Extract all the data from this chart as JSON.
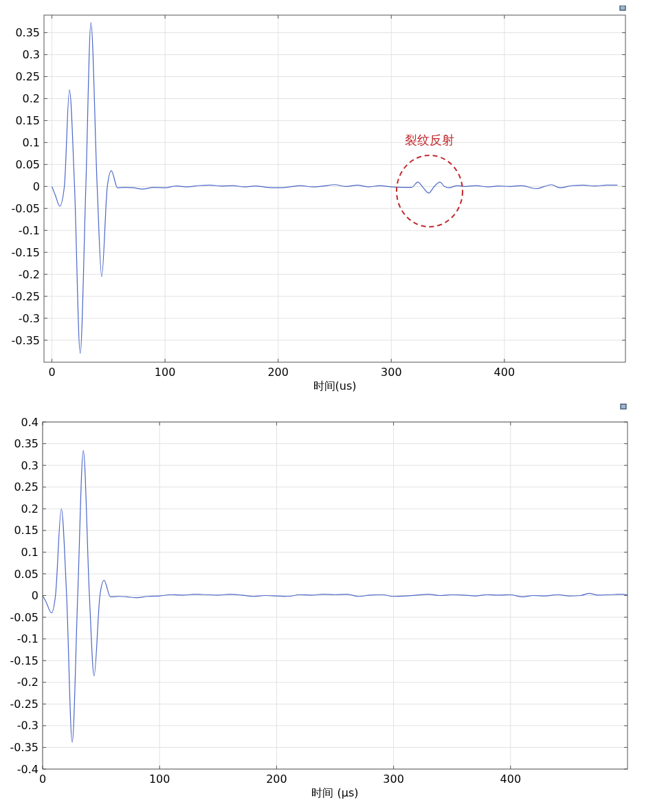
{
  "chart_data": [
    {
      "type": "line",
      "xlabel": "时间(us)",
      "xlim": [
        -7,
        507
      ],
      "ylim": [
        -0.4,
        0.39
      ],
      "xticks": [
        0,
        100,
        200,
        300,
        400
      ],
      "yticks": [
        -0.35,
        -0.3,
        -0.25,
        -0.2,
        -0.15,
        -0.1,
        -0.05,
        0,
        0.05,
        0.1,
        0.15,
        0.2,
        0.25,
        0.3,
        0.35
      ],
      "grid": true,
      "annotations": [
        "裂纹反射"
      ],
      "series": [
        {
          "color": "#4a66c8",
          "x": [
            0,
            3,
            7,
            11,
            15.5,
            20,
            25,
            30,
            34.5,
            40,
            44,
            49,
            52.5,
            58,
            65,
            72,
            80,
            90,
            100,
            110,
            120,
            130,
            140,
            150,
            160,
            170,
            180,
            190,
            200,
            210,
            220,
            230,
            240,
            250,
            260,
            270,
            280,
            290,
            300,
            310,
            318,
            323.5,
            328,
            333,
            338,
            343,
            347,
            351,
            358,
            365,
            375,
            385,
            395,
            405,
            415,
            428,
            441.5,
            449,
            460,
            470,
            480,
            490,
            500
          ],
          "values": [
            0,
            -0.02,
            -0.045,
            0,
            0.22,
            0,
            -0.38,
            0,
            0.373,
            0,
            -0.205,
            0,
            0.036,
            -0.003,
            -0.002,
            -0.003,
            -0.006,
            -0.002,
            -0.003,
            0.001,
            -0.001,
            0.002,
            0.003,
            0.001,
            0.002,
            -0.001,
            0.001,
            -0.002,
            -0.003,
            -0.001,
            0.002,
            -0.001,
            0.001,
            0.004,
            0,
            0.003,
            -0.001,
            0.002,
            -0.001,
            -0.002,
            -0.002,
            0.01,
            -0.002,
            -0.015,
            0,
            0.01,
            0,
            -0.003,
            0.002,
            0,
            0.002,
            -0.001,
            0.001,
            0,
            0.002,
            -0.005,
            0.004,
            -0.003,
            0.002,
            0.003,
            0.001,
            0.003,
            0.003
          ]
        }
      ]
    },
    {
      "type": "line",
      "xlabel": "时间 (μs)",
      "xlim": [
        0,
        500
      ],
      "ylim": [
        -0.4,
        0.4
      ],
      "xticks": [
        0,
        100,
        200,
        300,
        400
      ],
      "yticks": [
        -0.4,
        -0.35,
        -0.3,
        -0.25,
        -0.2,
        -0.15,
        -0.1,
        -0.05,
        0,
        0.05,
        0.1,
        0.15,
        0.2,
        0.25,
        0.3,
        0.35,
        0.4
      ],
      "grid": true,
      "series": [
        {
          "color": "#4a66c8",
          "x": [
            0,
            3,
            7.6,
            11,
            16,
            20.5,
            25.3,
            30,
            34.8,
            40,
            44,
            49,
            52.5,
            58,
            65,
            72,
            80,
            90,
            100,
            110,
            120,
            130,
            140,
            150,
            160,
            170,
            180,
            190,
            200,
            210,
            220,
            230,
            240,
            250,
            260,
            270,
            280,
            290,
            300,
            310,
            320,
            330,
            340,
            350,
            360,
            370,
            380,
            390,
            400,
            410,
            420,
            430,
            440,
            450,
            460,
            467,
            475,
            485,
            495,
            500
          ],
          "values": [
            0,
            -0.015,
            -0.04,
            0,
            0.2,
            0,
            -0.338,
            0,
            0.334,
            0,
            -0.185,
            0,
            0.035,
            -0.003,
            -0.002,
            -0.003,
            -0.005,
            -0.002,
            -0.001,
            0.002,
            0.001,
            0.003,
            0.002,
            0.001,
            0.003,
            0.001,
            -0.002,
            0,
            -0.001,
            -0.002,
            0.002,
            0.001,
            0.003,
            0.002,
            0.003,
            -0.002,
            0.001,
            0.002,
            -0.002,
            -0.001,
            0.001,
            0.003,
            0,
            0.002,
            0.001,
            -0.001,
            0.002,
            0.001,
            0.002,
            -0.003,
            0,
            -0.001,
            0.002,
            -0.001,
            0,
            0.005,
            0.001,
            0.002,
            0.003,
            0.002
          ]
        }
      ]
    }
  ]
}
